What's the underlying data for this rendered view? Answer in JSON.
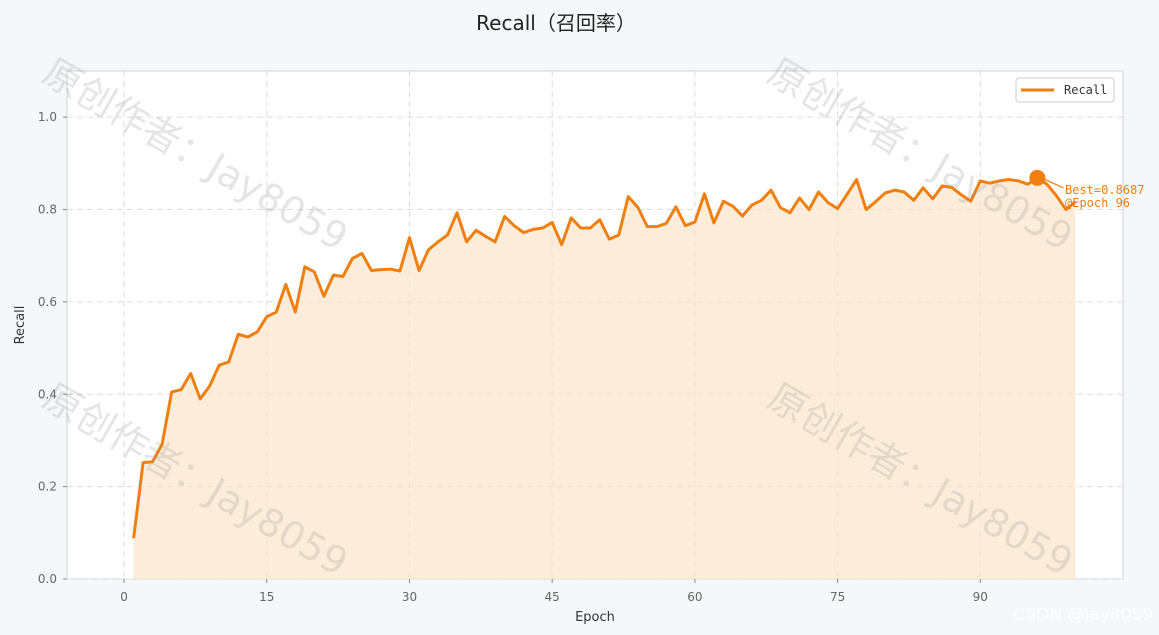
{
  "chart_data": {
    "type": "line",
    "title": "Recall（召回率）",
    "xlabel": "Epoch",
    "ylabel": "Recall",
    "xlim": [
      -6,
      105
    ],
    "ylim": [
      0.0,
      1.1
    ],
    "xticks": [
      "0",
      "15",
      "30",
      "45",
      "60",
      "75",
      "90"
    ],
    "yticks": [
      "0.0",
      "0.2",
      "0.4",
      "0.6",
      "0.8",
      "1.0"
    ],
    "grid": true,
    "legend_position": "top-right",
    "series": [
      {
        "name": "Recall",
        "color": "#f07f0f",
        "fill_color": "#fbe5cc",
        "x": [
          1,
          2,
          3,
          4,
          5,
          6,
          7,
          8,
          9,
          10,
          11,
          12,
          13,
          14,
          15,
          16,
          17,
          18,
          19,
          20,
          21,
          22,
          23,
          24,
          25,
          26,
          27,
          28,
          29,
          30,
          31,
          32,
          33,
          34,
          35,
          36,
          37,
          38,
          39,
          40,
          41,
          42,
          43,
          44,
          45,
          46,
          47,
          48,
          49,
          50,
          51,
          52,
          53,
          54,
          55,
          56,
          57,
          58,
          59,
          60,
          61,
          62,
          63,
          64,
          65,
          66,
          67,
          68,
          69,
          70,
          71,
          72,
          73,
          74,
          75,
          76,
          77,
          78,
          79,
          80,
          81,
          82,
          83,
          84,
          85,
          86,
          87,
          88,
          89,
          90,
          91,
          92,
          93,
          94,
          95,
          96,
          97,
          98,
          99,
          100
        ],
        "values": [
          0.088,
          0.252,
          0.254,
          0.292,
          0.405,
          0.41,
          0.445,
          0.39,
          0.418,
          0.463,
          0.47,
          0.53,
          0.524,
          0.535,
          0.568,
          0.578,
          0.638,
          0.578,
          0.676,
          0.665,
          0.612,
          0.658,
          0.655,
          0.694,
          0.705,
          0.668,
          0.67,
          0.671,
          0.667,
          0.739,
          0.668,
          0.713,
          0.73,
          0.745,
          0.793,
          0.73,
          0.755,
          0.742,
          0.73,
          0.785,
          0.765,
          0.75,
          0.757,
          0.76,
          0.772,
          0.724,
          0.782,
          0.76,
          0.76,
          0.778,
          0.736,
          0.745,
          0.828,
          0.805,
          0.763,
          0.763,
          0.77,
          0.806,
          0.765,
          0.773,
          0.834,
          0.771,
          0.818,
          0.807,
          0.786,
          0.81,
          0.82,
          0.842,
          0.804,
          0.793,
          0.825,
          0.8,
          0.838,
          0.815,
          0.802,
          0.833,
          0.865,
          0.8,
          0.817,
          0.836,
          0.842,
          0.838,
          0.82,
          0.847,
          0.823,
          0.851,
          0.848,
          0.832,
          0.818,
          0.862,
          0.857,
          0.862,
          0.865,
          0.862,
          0.855,
          0.8687,
          0.855,
          0.83,
          0.8,
          0.817
        ]
      }
    ],
    "annotation": {
      "x": 96,
      "y": 0.8687,
      "line1": "Best=0.8687",
      "line2": "@Epoch 96"
    }
  },
  "watermarks": [
    "原创作者：Jay8059",
    "原创作者：Jay8059",
    "原创作者：Jay8059",
    "原创作者：Jay8059"
  ],
  "footer_credit": "CSDN @Jay8059"
}
